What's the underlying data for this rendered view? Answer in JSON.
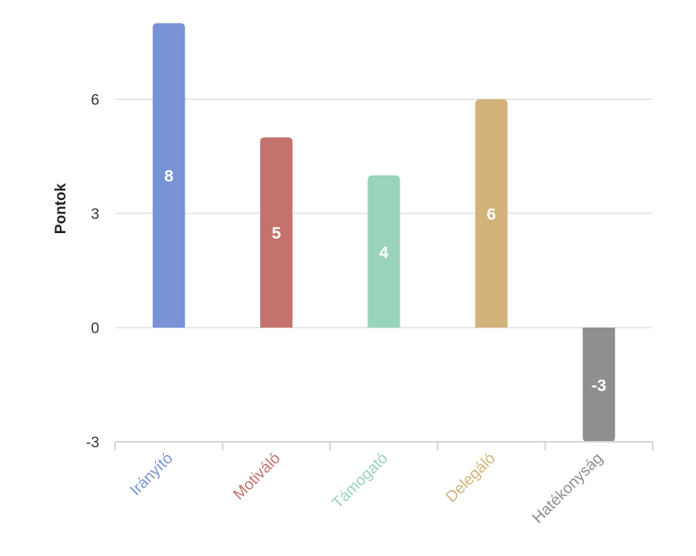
{
  "chart_data": {
    "type": "bar",
    "categories": [
      "Irányító",
      "Motiváló",
      "Támogató",
      "Delegáló",
      "Hatékonyság"
    ],
    "values": [
      8,
      5,
      4,
      6,
      -3
    ],
    "colors": [
      "#7894d6",
      "#c4736c",
      "#99d3bb",
      "#d2b37a",
      "#8f8f8f"
    ],
    "xlabel": "",
    "ylabel": "Pontok",
    "ylim": [
      -3,
      8
    ],
    "yticks": [
      -3,
      0,
      3,
      6
    ],
    "grid": true,
    "data_labels": true,
    "legend": "none"
  }
}
